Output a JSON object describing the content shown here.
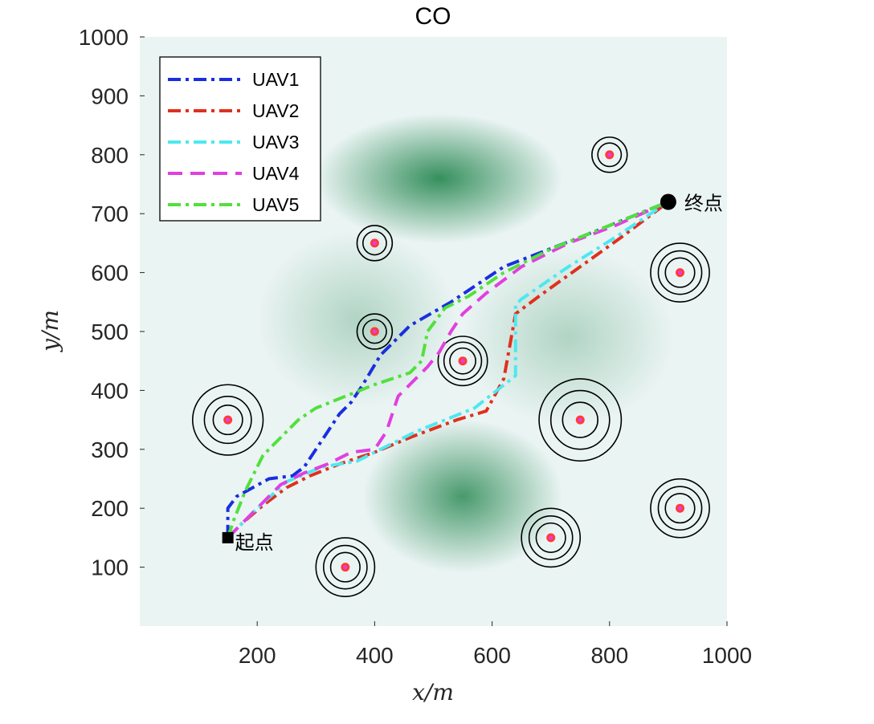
{
  "chart_data": {
    "type": "line",
    "title": "CO",
    "xlabel": "x/m",
    "ylabel": "y/m",
    "xlim": [
      0,
      1000
    ],
    "ylim": [
      0,
      1000
    ],
    "xticks": [
      200,
      400,
      600,
      800,
      1000
    ],
    "yticks": [
      100,
      200,
      300,
      400,
      500,
      600,
      700,
      800,
      900,
      1000
    ],
    "grid": false,
    "legend_position": "top-left",
    "colors": {
      "background": "#eaf4f3",
      "terrain": "#2c8a55",
      "threat_ring": "#000000",
      "threat_center_outer": "#ff3b3b",
      "threat_center_inner": "#e040e0"
    },
    "terrain_peaks": [
      {
        "x": 510,
        "y": 760,
        "sx": 105,
        "sy": 55,
        "strength": 0.95
      },
      {
        "x": 550,
        "y": 220,
        "sx": 85,
        "sy": 65,
        "strength": 0.85
      },
      {
        "x": 370,
        "y": 520,
        "sx": 85,
        "sy": 75,
        "strength": 0.3
      },
      {
        "x": 730,
        "y": 490,
        "sx": 90,
        "sy": 75,
        "strength": 0.3
      }
    ],
    "threats": [
      {
        "x": 800,
        "y": 800,
        "r": [
          20,
          30
        ]
      },
      {
        "x": 400,
        "y": 650,
        "r": [
          20,
          30
        ]
      },
      {
        "x": 920,
        "y": 600,
        "r": [
          25,
          37,
          50
        ]
      },
      {
        "x": 400,
        "y": 500,
        "r": [
          20,
          30
        ]
      },
      {
        "x": 550,
        "y": 450,
        "r": [
          22,
          32,
          42
        ]
      },
      {
        "x": 150,
        "y": 350,
        "r": [
          25,
          40,
          60
        ]
      },
      {
        "x": 750,
        "y": 350,
        "r": [
          30,
          50,
          70
        ]
      },
      {
        "x": 920,
        "y": 200,
        "r": [
          25,
          37,
          50
        ]
      },
      {
        "x": 700,
        "y": 150,
        "r": [
          25,
          37,
          50
        ]
      },
      {
        "x": 350,
        "y": 100,
        "r": [
          25,
          37,
          50
        ]
      }
    ],
    "start": {
      "x": 150,
      "y": 150,
      "label": "起点"
    },
    "end": {
      "x": 900,
      "y": 720,
      "label": "终点"
    },
    "series": [
      {
        "name": "UAV1",
        "color": "#1a2ee0",
        "dash": "16,6,4,6",
        "x": [
          150,
          150,
          165,
          220,
          260,
          280,
          300,
          320,
          340,
          360,
          380,
          410,
          460,
          530,
          620,
          750,
          900
        ],
        "y": [
          150,
          200,
          220,
          250,
          255,
          270,
          300,
          330,
          360,
          380,
          410,
          460,
          510,
          550,
          610,
          660,
          720
        ]
      },
      {
        "name": "UAV2",
        "color": "#e0301e",
        "dash": "16,6,4,6",
        "x": [
          150,
          175,
          210,
          250,
          290,
          340,
          400,
          460,
          540,
          590,
          620,
          640,
          680,
          750,
          820,
          900
        ],
        "y": [
          150,
          175,
          205,
          235,
          255,
          275,
          295,
          320,
          350,
          365,
          420,
          530,
          560,
          610,
          660,
          720
        ]
      },
      {
        "name": "UAV3",
        "color": "#4de8f0",
        "dash": "16,6,4,6",
        "x": [
          150,
          170,
          200,
          250,
          310,
          370,
          420,
          470,
          520,
          570,
          640,
          640,
          650,
          730,
          810,
          900
        ],
        "y": [
          150,
          170,
          200,
          245,
          270,
          280,
          305,
          330,
          350,
          370,
          425,
          545,
          555,
          610,
          660,
          720
        ]
      },
      {
        "name": "UAV4",
        "color": "#e040e0",
        "dash": "18,10",
        "x": [
          150,
          170,
          200,
          240,
          280,
          320,
          360,
          400,
          420,
          440,
          470,
          490,
          510,
          530,
          550,
          590,
          650,
          730,
          810,
          900
        ],
        "y": [
          150,
          170,
          200,
          240,
          260,
          275,
          295,
          300,
          330,
          390,
          420,
          440,
          465,
          500,
          530,
          565,
          610,
          650,
          680,
          720
        ]
      },
      {
        "name": "UAV5",
        "color": "#52e03c",
        "dash": "16,6,4,6",
        "x": [
          150,
          160,
          180,
          210,
          240,
          270,
          300,
          350,
          400,
          460,
          480,
          490,
          520,
          560,
          620,
          700,
          800,
          900
        ],
        "y": [
          150,
          180,
          230,
          290,
          320,
          350,
          370,
          390,
          410,
          430,
          450,
          500,
          540,
          560,
          600,
          640,
          680,
          720
        ]
      }
    ]
  }
}
